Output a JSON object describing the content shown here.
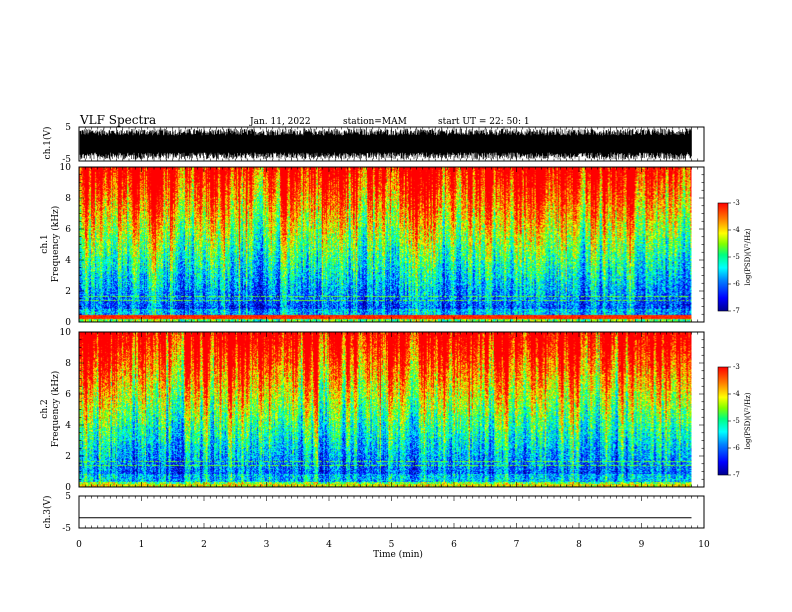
{
  "header": {
    "title": "VLF Spectra",
    "date": "Jan. 11, 2022",
    "station": "station=MAM",
    "start_time": "start UT =  22: 50: 1"
  },
  "chart_data": [
    {
      "type": "line",
      "name": "ch1-waveform",
      "ylabel": "ch.1(V)",
      "ylim": [
        -5,
        5
      ],
      "yticks": [
        "5",
        "-5"
      ],
      "xlim": [
        0,
        10
      ],
      "description_of_signal": "dense noise, roughly -4 to 4 V, data ends ~9.8 min"
    },
    {
      "type": "heatmap",
      "name": "ch1-spectrogram",
      "ylabel": "ch.1\nFrequency (kHz)",
      "ylabel_lines": [
        "ch.1",
        "Frequency (kHz)"
      ],
      "ylim": [
        0,
        10
      ],
      "yticks": [
        "0",
        "2",
        "4",
        "6",
        "8",
        "10"
      ],
      "xlim": [
        0,
        10
      ],
      "data_end_min": 9.8,
      "colorbar": {
        "label": "log(PSD)(V²/Hz)",
        "range": [
          -7,
          -3
        ],
        "ticks": [
          "-3",
          "-4",
          "-5",
          "-6",
          "-7"
        ]
      }
    },
    {
      "type": "heatmap",
      "name": "ch2-spectrogram",
      "ylabel": "ch.2\nFrequency (kHz)",
      "ylabel_lines": [
        "ch.2",
        "Frequency (kHz)"
      ],
      "ylim": [
        0,
        10
      ],
      "yticks": [
        "0",
        "2",
        "4",
        "6",
        "8",
        "10"
      ],
      "xlim": [
        0,
        10
      ],
      "data_end_min": 9.8,
      "colorbar": {
        "label": "log(PSD)(V²/Hz)",
        "range": [
          -7,
          -3
        ],
        "ticks": [
          "-3",
          "-4",
          "-5",
          "-6",
          "-7"
        ]
      }
    },
    {
      "type": "line",
      "name": "ch3-waveform",
      "ylabel": "ch.3(V)",
      "ylim": [
        -5,
        5
      ],
      "yticks": [
        "5",
        "-5"
      ],
      "xlim": [
        0,
        10
      ],
      "constant_value": -1.8,
      "data_end_min": 9.8
    }
  ],
  "xaxis": {
    "label": "Time (min)",
    "ticks": [
      "0",
      "1",
      "2",
      "3",
      "4",
      "5",
      "6",
      "7",
      "8",
      "9",
      "10"
    ]
  },
  "colors": {
    "colormap": [
      "#00008f",
      "#0000ff",
      "#0080ff",
      "#00ffff",
      "#00ff80",
      "#80ff00",
      "#ffff00",
      "#ff8000",
      "#ff0000"
    ],
    "axis": "#000000"
  }
}
